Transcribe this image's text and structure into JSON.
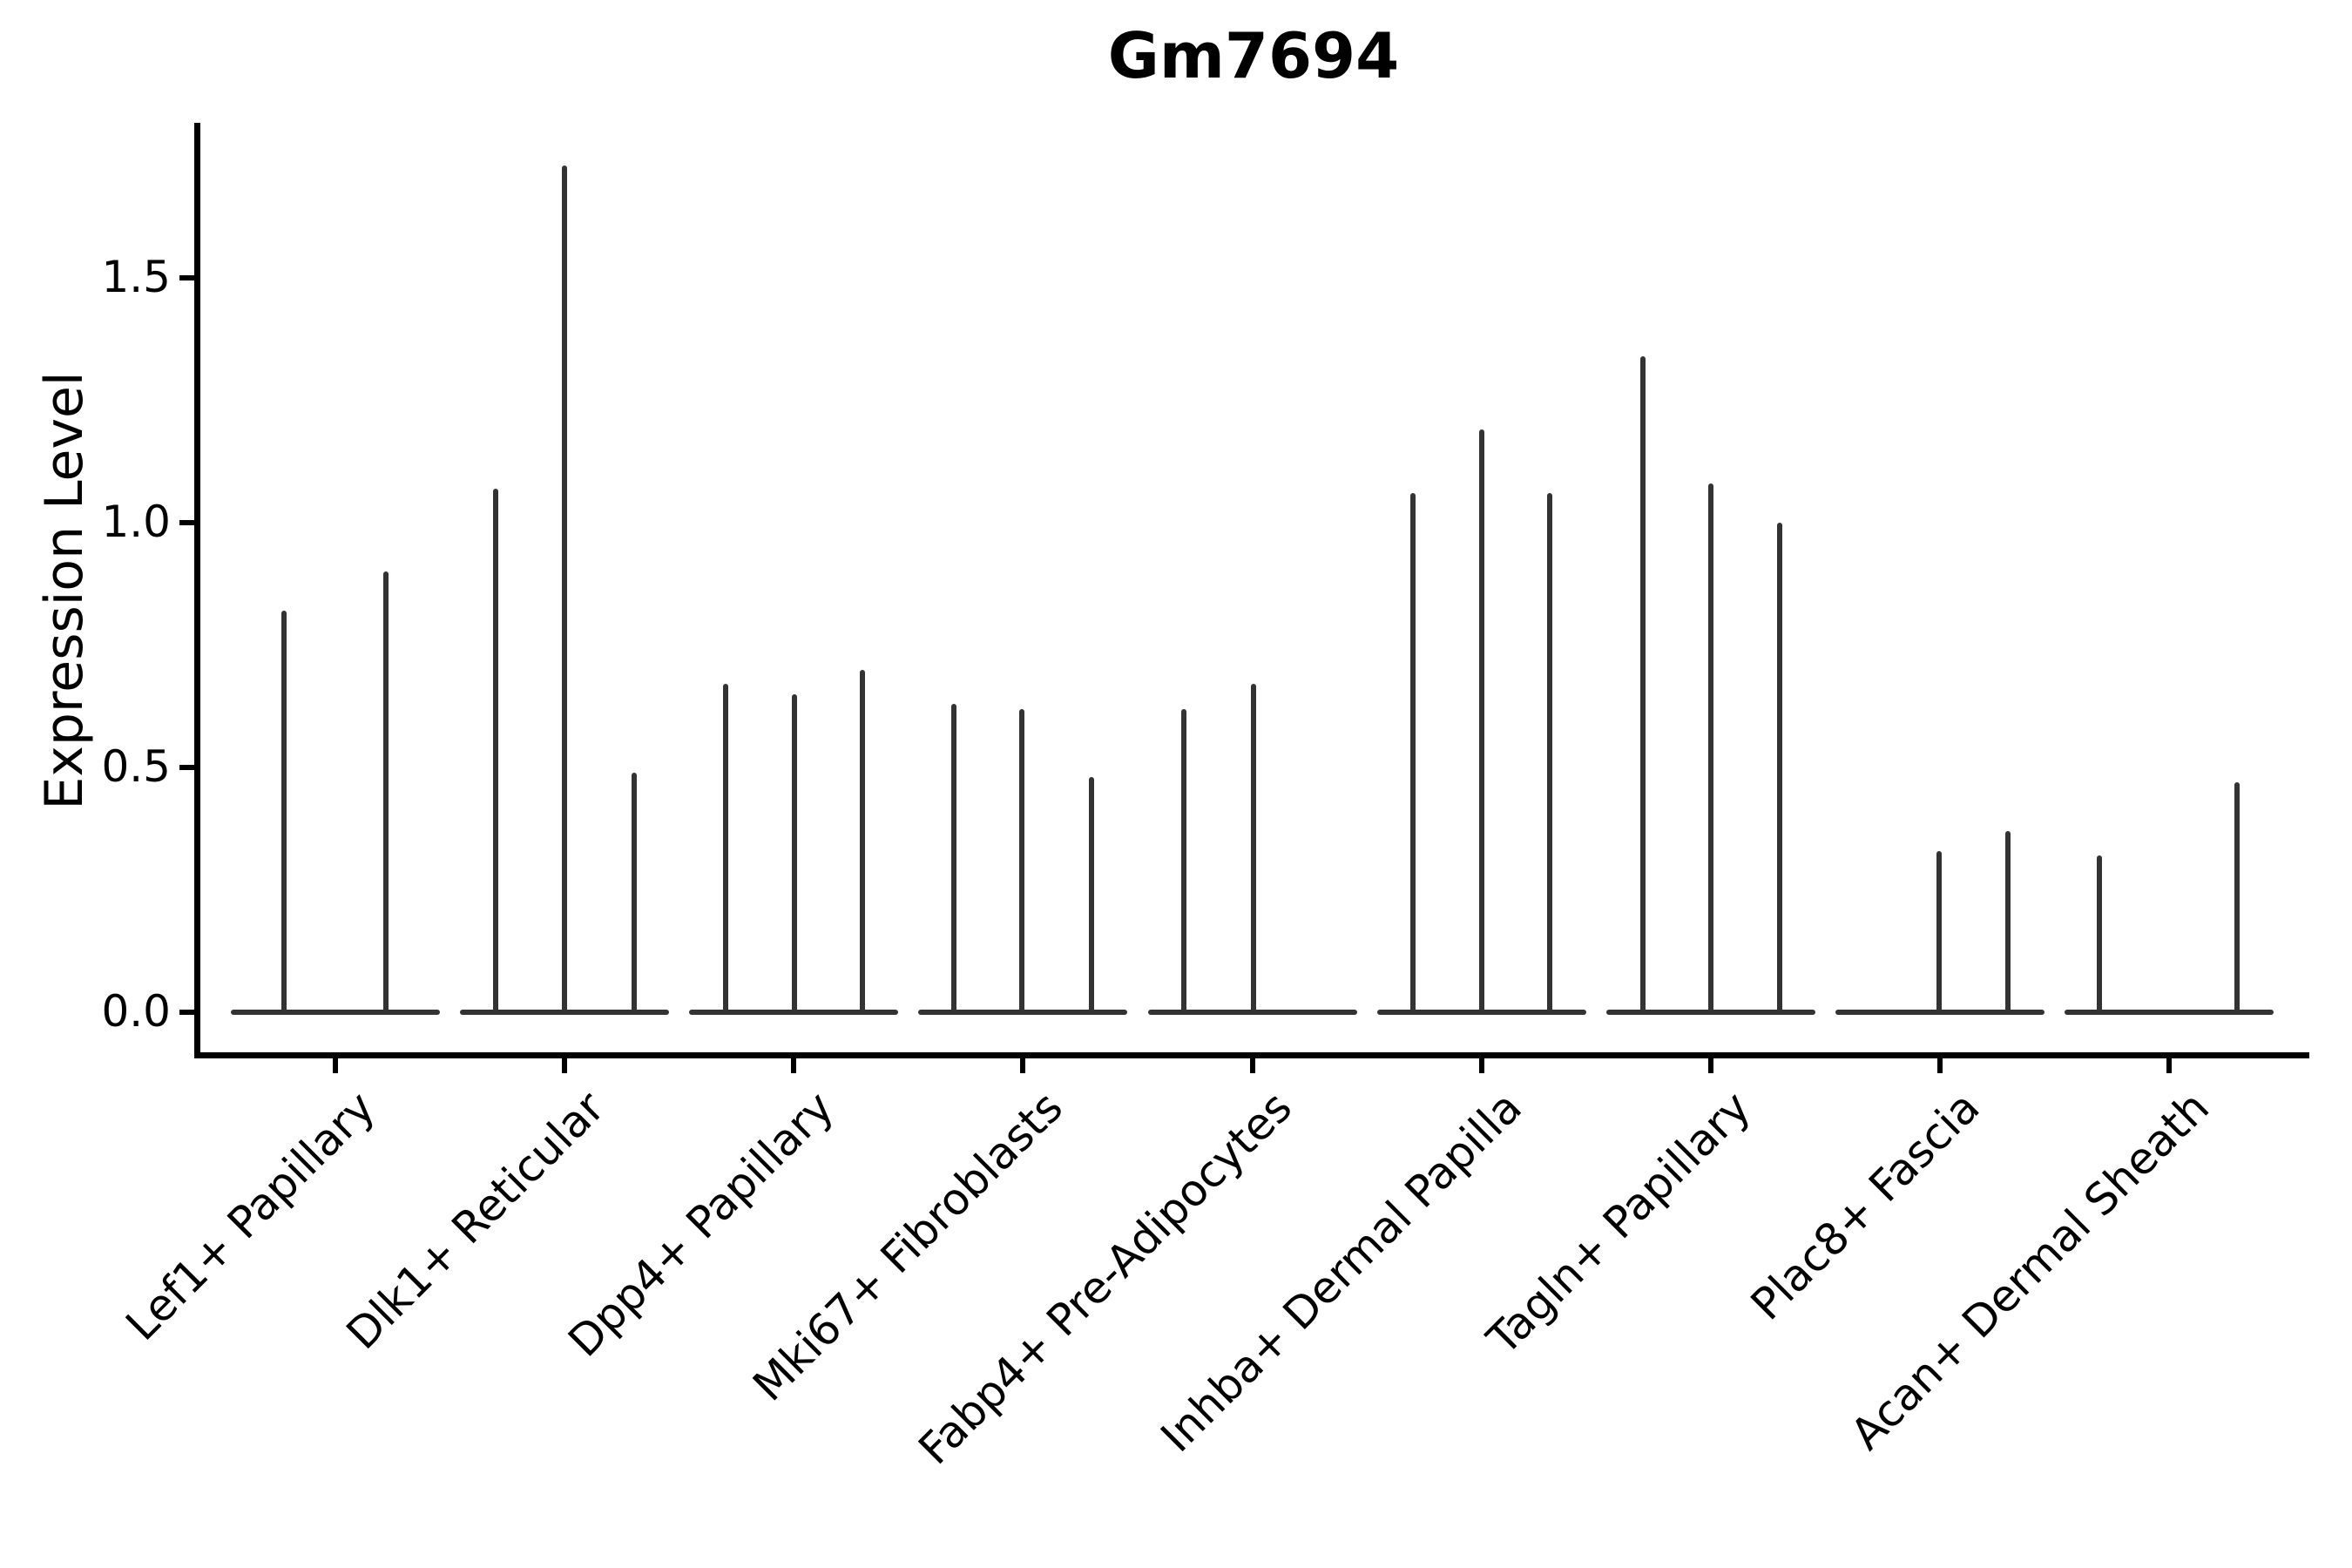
{
  "figure": {
    "title": "Gm7694"
  },
  "chart_data": {
    "type": "violin",
    "title": "Gm7694",
    "subtitle": "",
    "xlabel": "",
    "ylabel": "Expression Level",
    "ylim": [
      -0.09,
      1.82
    ],
    "ytick_labels": [
      "0.0",
      "0.5",
      "1.0",
      "1.5"
    ],
    "ytick_values": [
      0.0,
      0.5,
      1.0,
      1.5
    ],
    "grid": false,
    "legend_position": "none",
    "x_axis_tick_rotation_deg": 45,
    "categories": [
      "Lef1+ Papillary",
      "Dlk1+ Reticular",
      "Dpp4+ Papillary",
      "Mki67+ Fibroblasts",
      "Fabp4+ Pre-Adipocytes",
      "Inhba+ Dermal Papilla",
      "Tagln+ Papillary",
      "Plac8+ Fascia",
      "Acan+ Dermal Sheath"
    ],
    "groups": [
      {
        "category": "Lef1+ Papillary",
        "violins": [
          {
            "offset": -59,
            "peak": 0.82
          },
          {
            "offset": 58,
            "peak": 0.9
          }
        ]
      },
      {
        "category": "Dlk1+ Reticular",
        "violins": [
          {
            "offset": -79,
            "peak": 1.07
          },
          {
            "offset": 0,
            "peak": 1.73
          },
          {
            "offset": 80,
            "peak": 0.49
          }
        ]
      },
      {
        "category": "Dpp4+ Papillary",
        "violins": [
          {
            "offset": -78,
            "peak": 0.67
          },
          {
            "offset": 1,
            "peak": 0.65
          },
          {
            "offset": 79,
            "peak": 0.7
          }
        ]
      },
      {
        "category": "Mki67+ Fibroblasts",
        "violins": [
          {
            "offset": -79,
            "peak": 0.63
          },
          {
            "offset": -1,
            "peak": 0.62
          },
          {
            "offset": 79,
            "peak": 0.48
          }
        ]
      },
      {
        "category": "Fabp4+ Pre-Adipocytes",
        "violins": [
          {
            "offset": -79,
            "peak": 0.62
          },
          {
            "offset": 1,
            "peak": 0.67
          },
          {
            "offset": 79,
            "peak": 0.0
          }
        ]
      },
      {
        "category": "Inhba+ Dermal Papilla",
        "violins": [
          {
            "offset": -79,
            "peak": 1.06
          },
          {
            "offset": 0,
            "peak": 1.19
          },
          {
            "offset": 78,
            "peak": 1.06
          }
        ]
      },
      {
        "category": "Tagln+ Papillary",
        "violins": [
          {
            "offset": -78,
            "peak": 1.34
          },
          {
            "offset": 0,
            "peak": 1.08
          },
          {
            "offset": 79,
            "peak": 1.0
          }
        ]
      },
      {
        "category": "Plac8+ Fascia",
        "violins": [
          {
            "offset": -79,
            "peak": 0.0
          },
          {
            "offset": -1,
            "peak": 0.33
          },
          {
            "offset": 78,
            "peak": 0.37
          }
        ]
      },
      {
        "category": "Acan+ Dermal Sheath",
        "violins": [
          {
            "offset": -80,
            "peak": 0.32
          },
          {
            "offset": -1,
            "peak": 0.0
          },
          {
            "offset": 78,
            "peak": 0.47
          }
        ]
      }
    ],
    "colors": {
      "violin": "#333333",
      "axis": "#000000",
      "text": "#000000",
      "background": "#ffffff"
    }
  }
}
